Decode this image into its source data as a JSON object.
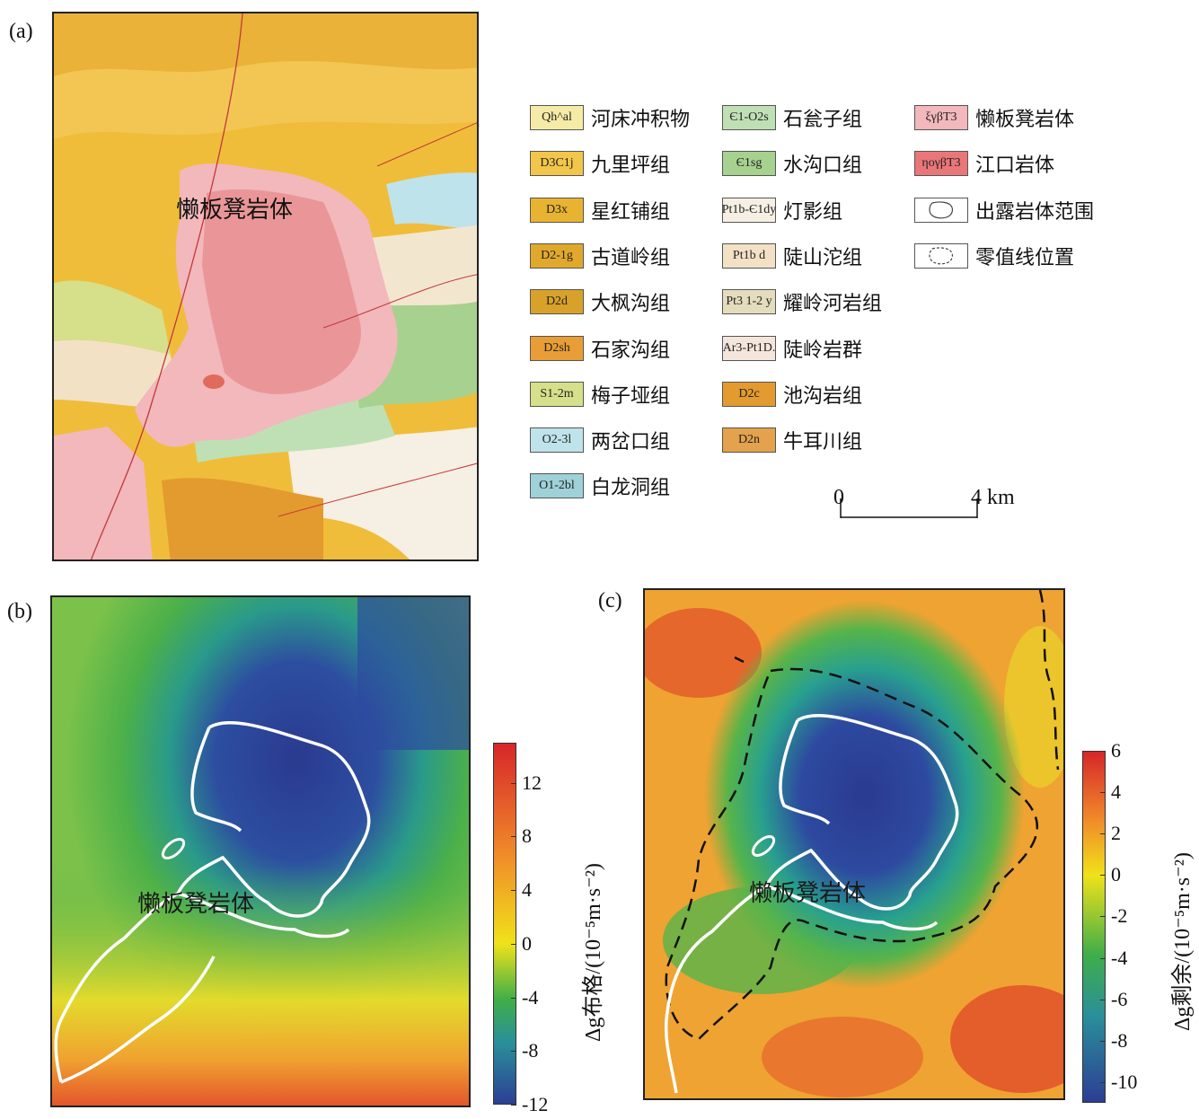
{
  "panels": {
    "a": {
      "label": "(a)"
    },
    "b": {
      "label": "(b)"
    },
    "c": {
      "label": "(c)"
    }
  },
  "map_annotation": "懒板凳岩体",
  "legend": [
    {
      "code": "Qh^al",
      "name": "河床冲积物",
      "color": "#f6eba6"
    },
    {
      "code": "D3C1j",
      "name": "九里坪组",
      "color": "#f2c64a"
    },
    {
      "code": "D3x",
      "name": "星红铺组",
      "color": "#e8b331"
    },
    {
      "code": "D2-1g",
      "name": "古道岭组",
      "color": "#e1a92c"
    },
    {
      "code": "D2d",
      "name": "大枫沟组",
      "color": "#d8a22a"
    },
    {
      "code": "D2sh",
      "name": "石家沟组",
      "color": "#e89d36"
    },
    {
      "code": "S1-2m",
      "name": "梅子垭组",
      "color": "#d6df8a"
    },
    {
      "code": "O2-3l",
      "name": "两岔口组",
      "color": "#bfe3ea"
    },
    {
      "code": "O1-2bl",
      "name": "白龙洞组",
      "color": "#9fd1d8"
    },
    {
      "code": "Є1-O2s",
      "name": "石瓮子组",
      "color": "#bfe0b5"
    },
    {
      "code": "Є1sg",
      "name": "水沟口组",
      "color": "#a6d18f"
    },
    {
      "code": "Pt1b-Є1dy",
      "name": "灯影组",
      "color": "#f6efe3"
    },
    {
      "code": "Pt1b d",
      "name": "陡山沱组",
      "color": "#f3e1c6"
    },
    {
      "code": "Pt3 1-2 y",
      "name": "耀岭河岩组",
      "color": "#e4dcbd"
    },
    {
      "code": "Ar3-Pt1D.",
      "name": "陡岭岩群",
      "color": "#f5e6dc"
    },
    {
      "code": "D2c",
      "name": "池沟岩组",
      "color": "#e39a2f"
    },
    {
      "code": "D2n",
      "name": "牛耳川组",
      "color": "#e3a24b"
    },
    {
      "code": "ξγβT3",
      "name": "懒板凳岩体",
      "color": "#f2b8bc"
    },
    {
      "code": "ηογβT3",
      "name": "江口岩体",
      "color": "#e97679"
    },
    {
      "code": "",
      "name": "出露岩体范围",
      "color": "#ffffff"
    },
    {
      "code": "",
      "name": "零值线位置",
      "color": "#ffffff"
    }
  ],
  "scale_bar": {
    "start": "0",
    "end": "4 km"
  },
  "colorbar_b": {
    "ticks": [
      "12",
      "8",
      "4",
      "0",
      "-4",
      "-8",
      "-12"
    ],
    "title": "Δg布格/(10⁻⁵m·s⁻²)",
    "range": [
      -12,
      15
    ]
  },
  "colorbar_c": {
    "ticks": [
      "6",
      "4",
      "2",
      "0",
      "-2",
      "-4",
      "-6",
      "-8",
      "-10"
    ],
    "title": "Δg剩余/(10⁻⁵m·s⁻²)",
    "range": [
      -11,
      6
    ]
  },
  "colors": {
    "low": "#2c3e94",
    "mid": "#3fae49",
    "zero": "#f0e21a",
    "high": "#d7262a"
  }
}
